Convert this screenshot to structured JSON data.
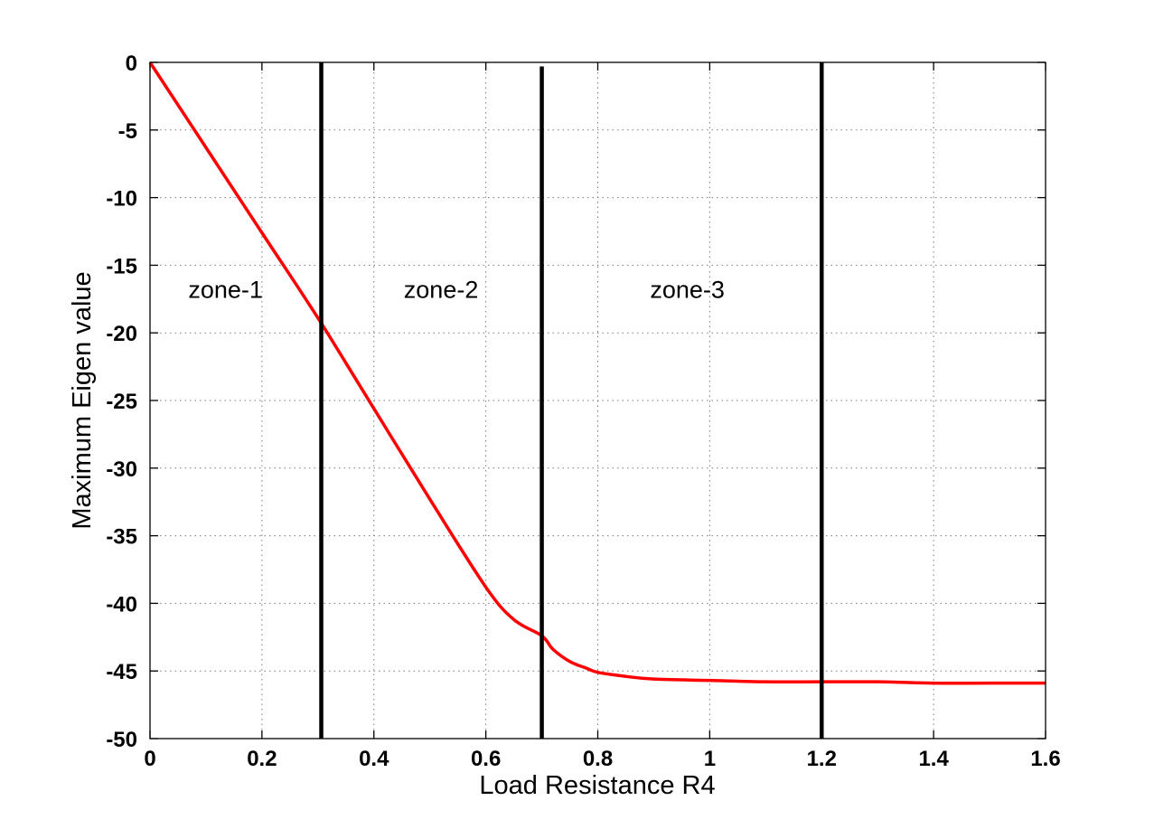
{
  "chart_data": {
    "type": "line",
    "title": "",
    "xlabel": "Load Resistance R4",
    "ylabel": "Maximum Eigen value",
    "xlim": [
      0,
      1.6
    ],
    "ylim": [
      -50,
      0
    ],
    "xticks": [
      0,
      0.2,
      0.4,
      0.6,
      0.8,
      1,
      1.2,
      1.4,
      1.6
    ],
    "yticks": [
      -50,
      -45,
      -40,
      -35,
      -30,
      -25,
      -20,
      -15,
      -10,
      -5,
      0
    ],
    "xtick_labels": [
      "0",
      "0.2",
      "0.4",
      "0.6",
      "0.8",
      "1",
      "1.2",
      "1.4",
      "1.6"
    ],
    "ytick_labels": [
      "-50",
      "-45",
      "-40",
      "-35",
      "-30",
      "-25",
      "-20",
      "-15",
      "-10",
      "-5",
      "0"
    ],
    "grid": true,
    "series": [
      {
        "color": "#ff0000",
        "x": [
          0,
          0.1,
          0.2,
          0.3,
          0.4,
          0.5,
          0.6,
          0.65,
          0.7,
          0.72,
          0.75,
          0.78,
          0.8,
          0.85,
          0.9,
          1.0,
          1.1,
          1.2,
          1.3,
          1.4,
          1.5,
          1.6
        ],
        "y": [
          0,
          -6.3,
          -12.6,
          -18.9,
          -25.6,
          -32.3,
          -38.8,
          -41.2,
          -42.4,
          -43.4,
          -44.3,
          -44.8,
          -45.1,
          -45.4,
          -45.6,
          -45.7,
          -45.8,
          -45.8,
          -45.8,
          -45.9,
          -45.9,
          -45.9
        ]
      }
    ],
    "vertical_lines": [
      {
        "x": 0.306,
        "y_from": -50,
        "y_to": 0,
        "color": "#000000"
      },
      {
        "x": 0.7,
        "y_from": -50,
        "y_to": -0.3,
        "color": "#000000"
      },
      {
        "x": 1.2,
        "y_from": -50,
        "y_to": 0,
        "color": "#000000"
      }
    ],
    "annotations": [
      {
        "text": "zone-1",
        "x": 0.135,
        "y": -17.4
      },
      {
        "text": "zone-2",
        "x": 0.52,
        "y": -17.4
      },
      {
        "text": "zone-3",
        "x": 0.96,
        "y": -17.4
      }
    ]
  }
}
